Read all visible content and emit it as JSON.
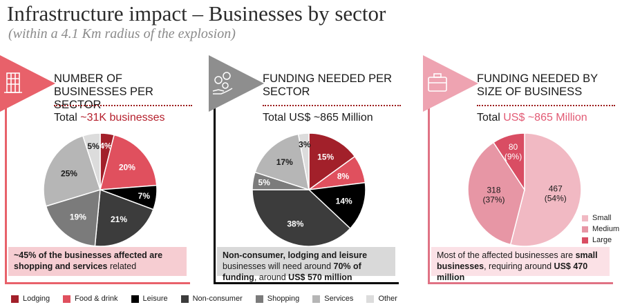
{
  "title": "Infrastructure impact – Businesses by sector",
  "subtitle": "(within a 4.1 Km radius of the explosion)",
  "colors": {
    "lodging": "#a2202a",
    "food_drink": "#e0505e",
    "leisure": "#000000",
    "non_consumer": "#3c3c3c",
    "shopping": "#7b7b7b",
    "services": "#b6b6b6",
    "other": "#dcdcdc",
    "small": "#f1b9c3",
    "medium": "#e796a5",
    "large": "#d94d63",
    "panel1_accent": "#e8616a",
    "panel2_accent": "#8e8e8e",
    "panel3_accent": "#eea3b1"
  },
  "panels": [
    {
      "title": "NUMBER OF BUSINESSES PER SECTOR",
      "total_prefix": "Total ",
      "total_value": "~31K businesses",
      "icon": "building-icon",
      "note_parts": [
        {
          "t": "~45% of the businesses affected are shopping and services",
          "b": true
        },
        {
          "t": " related",
          "b": false
        }
      ]
    },
    {
      "title": "FUNDING NEEDED PER SECTOR",
      "total_prefix": "Total ",
      "total_value": "US$ ~865 Million",
      "icon": "money-hand-icon",
      "note_parts": [
        {
          "t": "Non-consumer, lodging and leisure",
          "b": true
        },
        {
          "t": " businesses will need around ",
          "b": false
        },
        {
          "t": "70% of funding",
          "b": true
        },
        {
          "t": ", around ",
          "b": false
        },
        {
          "t": "US$ 570 million",
          "b": true
        }
      ]
    },
    {
      "title": "FUNDING NEEDED BY SIZE OF BUSINESS",
      "total_prefix": "Total ",
      "total_value": "US$ ~865 Million",
      "icon": "briefcase-icon",
      "note_parts": [
        {
          "t": "Most of the affected businesses are ",
          "b": false
        },
        {
          "t": "small businesses",
          "b": true
        },
        {
          "t": ", requiring around ",
          "b": false
        },
        {
          "t": "US$ 470 million",
          "b": true
        }
      ]
    }
  ],
  "chart_data": [
    {
      "type": "pie",
      "title": "NUMBER OF BUSINESSES PER SECTOR",
      "categories": [
        "Lodging",
        "Food & drink",
        "Leisure",
        "Non-consumer",
        "Shopping",
        "Services",
        "Other"
      ],
      "values": [
        4,
        20,
        7,
        21,
        19,
        25,
        5
      ],
      "labels": [
        "4%",
        "20%",
        "7%",
        "21%",
        "19%",
        "25%",
        "5%"
      ]
    },
    {
      "type": "pie",
      "title": "FUNDING NEEDED PER SECTOR",
      "categories": [
        "Lodging",
        "Food & drink",
        "Leisure",
        "Non-consumer",
        "Shopping",
        "Services",
        "Other"
      ],
      "values": [
        15,
        8,
        14,
        38,
        5,
        17,
        3
      ],
      "labels": [
        "15%",
        "8%",
        "14%",
        "38%",
        "5%",
        "17%",
        "3%"
      ]
    },
    {
      "type": "pie",
      "title": "FUNDING NEEDED BY SIZE OF BUSINESS",
      "categories": [
        "Small",
        "Medium",
        "Large"
      ],
      "values": [
        467,
        318,
        80
      ],
      "labels": [
        "467\n(54%)",
        "318\n(37%)",
        "80\n(9%)"
      ]
    }
  ],
  "legend": [
    "Lodging",
    "Food & drink",
    "Leisure",
    "Non-consumer",
    "Shopping",
    "Services",
    "Other"
  ],
  "size_legend": [
    "Small",
    "Medium",
    "Large"
  ]
}
